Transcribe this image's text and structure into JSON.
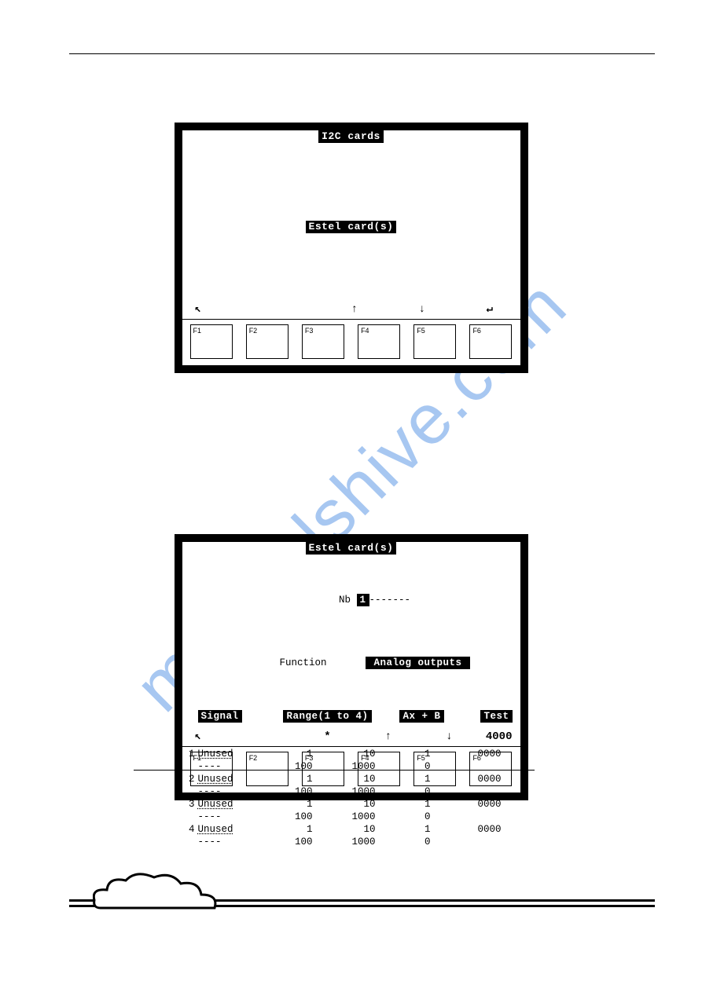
{
  "watermark_text": "manualshive.com",
  "screen1": {
    "title": "I2C cards",
    "menu_item": "Estel card(s)",
    "nav": {
      "back": "↖",
      "up": "↑",
      "down": "↓",
      "enter": "↵"
    }
  },
  "screen2": {
    "title": "Estel card(s)",
    "nb_label": "Nb",
    "nb_value": "1",
    "nb_dashes": "-------",
    "function_label": "Function",
    "function_value": "Analog outputs",
    "headers": {
      "signal": "Signal",
      "range": "Range(1 to 4)",
      "ax": "Ax + B",
      "test": "Test"
    },
    "rows": [
      {
        "n": "1",
        "sig": "Unused",
        "r1a": "1",
        "r2a": "10",
        "ax_a": "1",
        "test": "0000",
        "r1b": "100",
        "r2b": "1000",
        "ax_b": "0"
      },
      {
        "n": "2",
        "sig": "Unused",
        "r1a": "1",
        "r2a": "10",
        "ax_a": "1",
        "test": "0000",
        "r1b": "100",
        "r2b": "1000",
        "ax_b": "0"
      },
      {
        "n": "3",
        "sig": "Unused",
        "r1a": "1",
        "r2a": "10",
        "ax_a": "1",
        "test": "0000",
        "r1b": "100",
        "r2b": "1000",
        "ax_b": "0"
      },
      {
        "n": "4",
        "sig": "Unused",
        "r1a": "1",
        "r2a": "10",
        "ax_a": "1",
        "test": "0000",
        "r1b": "100",
        "r2b": "1000",
        "ax_b": "0"
      }
    ],
    "dashes": "----",
    "nav": {
      "back": "↖",
      "star": "*",
      "up": "↑",
      "down": "↓",
      "value": "4000"
    }
  },
  "fkeys": [
    "F1",
    "F2",
    "F3",
    "F4",
    "F5",
    "F6"
  ],
  "colors": {
    "watermark": "rgba(59,131,224,0.45)",
    "black": "#000000",
    "white": "#ffffff"
  }
}
